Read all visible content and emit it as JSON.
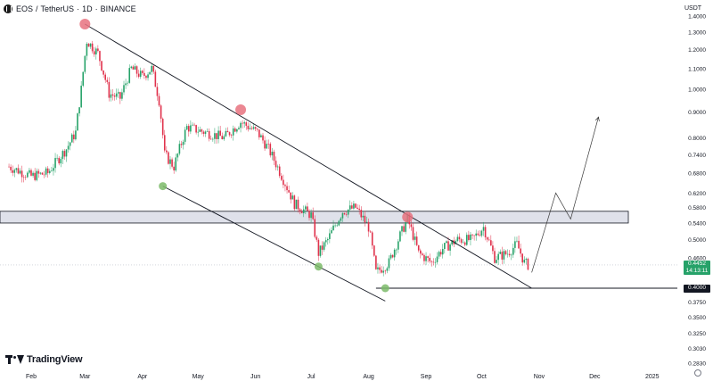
{
  "header": {
    "symbol": "EOS",
    "pair": "TetherUS",
    "interval": "1D",
    "exchange": "BINANCE",
    "separator1": "/",
    "separator2": "·",
    "separator3": "·"
  },
  "currency_label": "USDT",
  "branding": "TradingView",
  "colors": {
    "up": "#26a269",
    "down": "#e0314b",
    "line": "#131722",
    "zone_fill": "#dfe1ea",
    "marker_red": "#e8727f",
    "marker_green": "#7dbb6a"
  },
  "chart_data": {
    "type": "candlestick",
    "scale": "log",
    "ylim": [
      0.28,
      1.45
    ],
    "y_ticks": [
      "1.4000",
      "1.3000",
      "1.2000",
      "1.1000",
      "1.0000",
      "0.9000",
      "0.8000",
      "0.7400",
      "0.6800",
      "0.6200",
      "0.5800",
      "0.5400",
      "0.5000",
      "0.4600",
      "0.4000",
      "0.3750",
      "0.3500",
      "0.3250",
      "0.3030",
      "0.2830"
    ],
    "x_ticks": [
      "Feb",
      "Mar",
      "Apr",
      "May",
      "Jun",
      "Jul",
      "Aug",
      "Sep",
      "Oct",
      "Nov",
      "Dec",
      "2025"
    ],
    "current_price": {
      "value": "0.4452",
      "countdown": "14:13:11"
    },
    "support_level": {
      "value": "0.4000",
      "price": 0.4
    },
    "resistance_zone": {
      "low": 0.54,
      "high": 0.57
    },
    "trendlines": [
      {
        "name": "upper-channel",
        "from": [
          "Mar 01",
          1.35
        ],
        "to": [
          "Oct 28",
          0.4
        ]
      },
      {
        "name": "lower-channel",
        "from": [
          "Apr 12",
          0.64
        ],
        "to": [
          "Aug 10",
          0.377
        ]
      }
    ],
    "markers": [
      {
        "type": "high",
        "date": "Mar 01",
        "price": 1.35
      },
      {
        "type": "high",
        "date": "May 24",
        "price": 0.91
      },
      {
        "type": "high",
        "date": "Aug 22",
        "price": 0.555
      },
      {
        "type": "low",
        "date": "Apr 12",
        "price": 0.64
      },
      {
        "type": "low",
        "date": "Jul 05",
        "price": 0.442
      },
      {
        "type": "low",
        "date": "Aug 10",
        "price": 0.4
      }
    ],
    "projection": [
      {
        "date": "Oct 28",
        "price": 0.43
      },
      {
        "date": "Nov 10",
        "price": 0.62
      },
      {
        "date": "Nov 18",
        "price": 0.55
      },
      {
        "date": "Dec 03",
        "price": 0.88
      }
    ],
    "series_anchors": [
      [
        "Jan 20",
        0.7
      ],
      [
        "Feb 01",
        0.67
      ],
      [
        "Feb 10",
        0.68
      ],
      [
        "Feb 20",
        0.76
      ],
      [
        "Feb 25",
        0.82
      ],
      [
        "Feb 28",
        1.0
      ],
      [
        "Mar 02",
        1.25
      ],
      [
        "Mar 08",
        1.18
      ],
      [
        "Mar 14",
        0.98
      ],
      [
        "Mar 20",
        0.96
      ],
      [
        "Mar 26",
        1.1
      ],
      [
        "Apr 01",
        1.06
      ],
      [
        "Apr 06",
        1.1
      ],
      [
        "Apr 10",
        0.95
      ],
      [
        "Apr 13",
        0.74
      ],
      [
        "Apr 18",
        0.7
      ],
      [
        "Apr 25",
        0.84
      ],
      [
        "May 05",
        0.82
      ],
      [
        "May 15",
        0.8
      ],
      [
        "May 24",
        0.86
      ],
      [
        "Jun 02",
        0.82
      ],
      [
        "Jun 08",
        0.76
      ],
      [
        "Jun 16",
        0.66
      ],
      [
        "Jun 22",
        0.59
      ],
      [
        "Jul 01",
        0.56
      ],
      [
        "Jul 05",
        0.47
      ],
      [
        "Jul 10",
        0.5
      ],
      [
        "Jul 18",
        0.57
      ],
      [
        "Jul 25",
        0.58
      ],
      [
        "Aug 01",
        0.53
      ],
      [
        "Aug 05",
        0.43
      ],
      [
        "Aug 12",
        0.45
      ],
      [
        "Aug 22",
        0.55
      ],
      [
        "Aug 28",
        0.47
      ],
      [
        "Sep 04",
        0.45
      ],
      [
        "Sep 10",
        0.48
      ],
      [
        "Sep 18",
        0.5
      ],
      [
        "Sep 26",
        0.5
      ],
      [
        "Oct 02",
        0.53
      ],
      [
        "Oct 08",
        0.46
      ],
      [
        "Oct 15",
        0.47
      ],
      [
        "Oct 20",
        0.49
      ],
      [
        "Oct 24",
        0.45
      ],
      [
        "Oct 26",
        0.4452
      ]
    ]
  }
}
